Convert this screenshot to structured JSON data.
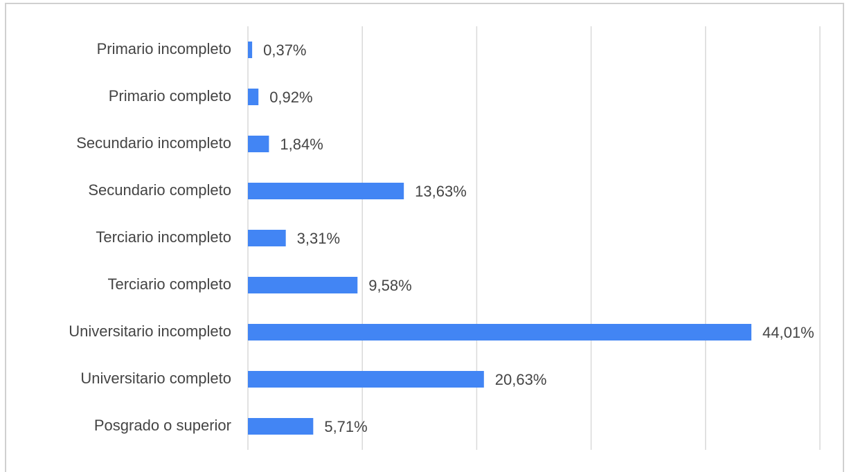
{
  "chart_data": {
    "type": "barh",
    "categories": [
      "Primario incompleto",
      "Primario completo",
      "Secundario incompleto",
      "Secundario completo",
      "Terciario incompleto",
      "Terciario completo",
      "Universitario incompleto",
      "Universitario completo",
      "Posgrado o superior"
    ],
    "values": [
      0.37,
      0.92,
      1.84,
      13.63,
      3.31,
      9.58,
      44.01,
      20.63,
      5.71
    ],
    "value_labels": [
      "0,37%",
      "0,92%",
      "1,84%",
      "13,63%",
      "3,31%",
      "9,58%",
      "44,01%",
      "20,63%",
      "5,71%"
    ],
    "color": "#4285f4",
    "xlim": [
      0,
      50
    ],
    "xticks": [
      0,
      10,
      20,
      30,
      40,
      50
    ],
    "grid": true
  }
}
